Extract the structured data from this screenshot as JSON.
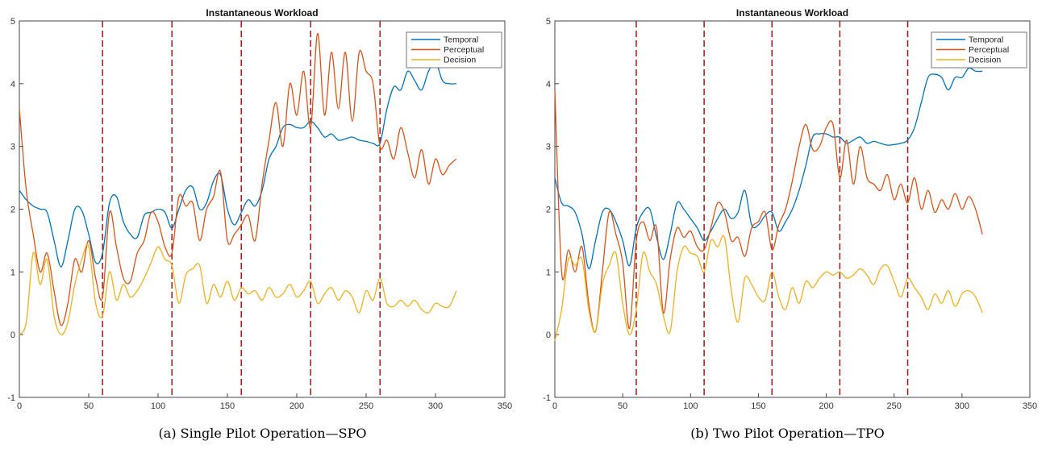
{
  "chart_data": [
    {
      "type": "line",
      "title": "Instantaneous Workload",
      "caption": "(a) Single Pilot Operation—SPO",
      "xlim": [
        0,
        350
      ],
      "ylim": [
        -1,
        5
      ],
      "x_ticks": [
        0,
        50,
        100,
        150,
        200,
        250,
        300,
        350
      ],
      "y_ticks": [
        -1,
        0,
        1,
        2,
        3,
        4,
        5
      ],
      "grid": false,
      "legend_position": "top-right",
      "vlines": [
        60,
        110,
        160,
        210,
        260
      ],
      "vline_color": "#a01818",
      "series": [
        {
          "name": "Temporal",
          "color": "#0072BD",
          "x": [
            0,
            5,
            10,
            15,
            20,
            25,
            30,
            35,
            40,
            45,
            50,
            55,
            60,
            65,
            70,
            75,
            80,
            85,
            90,
            95,
            100,
            105,
            110,
            115,
            120,
            125,
            130,
            135,
            140,
            145,
            150,
            155,
            160,
            165,
            170,
            175,
            180,
            185,
            190,
            195,
            200,
            205,
            210,
            215,
            220,
            225,
            230,
            235,
            240,
            245,
            250,
            255,
            260,
            265,
            270,
            275,
            280,
            285,
            290,
            295,
            300,
            305,
            310,
            315
          ],
          "y": [
            2.3,
            2.15,
            2.05,
            2.0,
            1.95,
            1.5,
            1.08,
            1.5,
            2.0,
            1.98,
            1.6,
            1.15,
            1.3,
            2.1,
            2.2,
            1.8,
            1.6,
            1.55,
            1.9,
            1.95,
            2.0,
            1.95,
            1.7,
            2.0,
            2.3,
            2.35,
            2.0,
            2.1,
            2.45,
            2.55,
            2.0,
            1.75,
            1.95,
            2.15,
            2.05,
            2.3,
            2.8,
            3.0,
            3.3,
            3.35,
            3.3,
            3.3,
            3.4,
            3.3,
            3.15,
            3.2,
            3.1,
            3.12,
            3.15,
            3.1,
            3.08,
            3.05,
            3.05,
            3.6,
            3.95,
            3.9,
            4.2,
            4.05,
            3.9,
            4.2,
            4.35,
            4.05,
            4.0,
            4.0
          ]
        },
        {
          "name": "Perceptual",
          "color": "#D95319",
          "x": [
            0,
            5,
            10,
            15,
            20,
            25,
            30,
            35,
            40,
            45,
            50,
            55,
            60,
            65,
            70,
            75,
            80,
            85,
            90,
            95,
            100,
            105,
            110,
            115,
            120,
            125,
            130,
            135,
            140,
            145,
            150,
            155,
            160,
            165,
            170,
            175,
            180,
            185,
            190,
            195,
            200,
            205,
            210,
            215,
            220,
            225,
            230,
            235,
            240,
            245,
            250,
            255,
            260,
            265,
            270,
            275,
            280,
            285,
            290,
            295,
            300,
            305,
            310,
            315
          ],
          "y": [
            3.6,
            2.3,
            1.6,
            1.0,
            1.3,
            0.7,
            0.15,
            0.5,
            1.2,
            1.0,
            1.5,
            0.9,
            0.6,
            1.95,
            1.4,
            0.9,
            0.85,
            1.3,
            1.5,
            1.95,
            1.8,
            1.4,
            1.3,
            2.2,
            2.05,
            2.1,
            1.5,
            2.0,
            2.2,
            2.6,
            1.5,
            1.6,
            1.75,
            1.9,
            1.5,
            2.4,
            3.1,
            3.7,
            3.0,
            4.0,
            3.5,
            4.2,
            3.3,
            4.8,
            3.5,
            4.5,
            3.6,
            4.5,
            3.4,
            4.5,
            4.2,
            4.0,
            3.0,
            3.1,
            2.8,
            3.3,
            2.9,
            2.5,
            2.95,
            2.4,
            2.8,
            2.55,
            2.7,
            2.8
          ]
        },
        {
          "name": "Decision",
          "color": "#EDB120",
          "x": [
            0,
            5,
            10,
            15,
            20,
            25,
            30,
            35,
            40,
            45,
            50,
            55,
            60,
            65,
            70,
            75,
            80,
            85,
            90,
            95,
            100,
            105,
            110,
            115,
            120,
            125,
            130,
            135,
            140,
            145,
            150,
            155,
            160,
            165,
            170,
            175,
            180,
            185,
            190,
            195,
            200,
            205,
            210,
            215,
            220,
            225,
            230,
            235,
            240,
            245,
            250,
            255,
            260,
            265,
            270,
            275,
            280,
            285,
            290,
            295,
            300,
            305,
            310,
            315
          ],
          "y": [
            0.0,
            0.2,
            1.3,
            0.8,
            1.2,
            0.3,
            0.0,
            0.2,
            0.8,
            1.2,
            1.4,
            0.5,
            0.3,
            1.0,
            0.55,
            0.8,
            0.6,
            0.7,
            0.9,
            1.15,
            1.4,
            1.2,
            1.1,
            0.5,
            0.95,
            1.05,
            1.1,
            0.5,
            0.8,
            0.6,
            0.85,
            0.55,
            0.75,
            0.65,
            0.7,
            0.55,
            0.75,
            0.6,
            0.65,
            0.8,
            0.6,
            0.7,
            0.85,
            0.5,
            0.65,
            0.75,
            0.55,
            0.7,
            0.6,
            0.35,
            0.7,
            0.55,
            0.9,
            0.5,
            0.45,
            0.55,
            0.45,
            0.55,
            0.4,
            0.35,
            0.5,
            0.45,
            0.45,
            0.7
          ]
        }
      ]
    },
    {
      "type": "line",
      "title": "Instantaneous Workload",
      "caption": "(b) Two Pilot Operation—TPO",
      "xlim": [
        0,
        350
      ],
      "ylim": [
        -1,
        5
      ],
      "x_ticks": [
        0,
        50,
        100,
        150,
        200,
        250,
        300,
        350
      ],
      "y_ticks": [
        -1,
        0,
        1,
        2,
        3,
        4,
        5
      ],
      "grid": false,
      "legend_position": "top-right",
      "vlines": [
        60,
        110,
        160,
        210,
        260
      ],
      "vline_color": "#a01818",
      "series": [
        {
          "name": "Temporal",
          "color": "#0072BD",
          "x": [
            0,
            5,
            10,
            15,
            20,
            25,
            30,
            35,
            40,
            45,
            50,
            55,
            60,
            65,
            70,
            75,
            80,
            85,
            90,
            95,
            100,
            105,
            110,
            115,
            120,
            125,
            130,
            135,
            140,
            145,
            150,
            155,
            160,
            165,
            170,
            175,
            180,
            185,
            190,
            195,
            200,
            205,
            210,
            215,
            220,
            225,
            230,
            235,
            240,
            245,
            250,
            255,
            260,
            265,
            270,
            275,
            280,
            285,
            290,
            295,
            300,
            305,
            310,
            315
          ],
          "y": [
            2.5,
            2.1,
            2.05,
            1.95,
            1.6,
            1.05,
            1.5,
            1.95,
            2.0,
            1.8,
            1.5,
            1.1,
            1.7,
            1.95,
            2.0,
            1.55,
            1.2,
            1.6,
            2.1,
            2.0,
            1.85,
            1.7,
            1.5,
            1.65,
            1.85,
            2.0,
            1.85,
            1.95,
            2.3,
            1.75,
            1.75,
            1.9,
            1.95,
            1.65,
            1.8,
            2.0,
            2.3,
            2.7,
            3.15,
            3.2,
            3.2,
            3.15,
            3.15,
            3.05,
            3.1,
            3.15,
            3.05,
            3.08,
            3.05,
            3.02,
            3.03,
            3.05,
            3.1,
            3.3,
            3.7,
            4.1,
            4.15,
            4.1,
            3.9,
            4.1,
            4.1,
            4.25,
            4.2,
            4.2
          ]
        },
        {
          "name": "Perceptual",
          "color": "#D95319",
          "x": [
            0,
            5,
            10,
            15,
            20,
            25,
            30,
            35,
            40,
            45,
            50,
            55,
            60,
            65,
            70,
            75,
            80,
            85,
            90,
            95,
            100,
            105,
            110,
            115,
            120,
            125,
            130,
            135,
            140,
            145,
            150,
            155,
            160,
            165,
            170,
            175,
            180,
            185,
            190,
            195,
            200,
            205,
            210,
            215,
            220,
            225,
            230,
            235,
            240,
            245,
            250,
            255,
            260,
            265,
            270,
            275,
            280,
            285,
            290,
            295,
            300,
            305,
            310,
            315
          ],
          "y": [
            3.9,
            1.0,
            1.35,
            1.0,
            1.4,
            0.5,
            0.05,
            1.0,
            1.95,
            1.6,
            1.15,
            0.1,
            1.5,
            1.8,
            1.5,
            1.7,
            0.35,
            1.2,
            1.7,
            1.55,
            1.65,
            1.4,
            1.35,
            1.7,
            2.1,
            1.95,
            1.5,
            1.55,
            1.25,
            1.7,
            1.8,
            1.95,
            1.35,
            1.75,
            2.0,
            2.45,
            3.0,
            3.35,
            2.95,
            3.0,
            3.3,
            3.35,
            2.5,
            3.1,
            2.4,
            3.0,
            2.5,
            2.4,
            2.3,
            2.55,
            2.15,
            2.4,
            2.1,
            2.5,
            2.0,
            2.3,
            1.95,
            2.15,
            2.0,
            2.25,
            2.0,
            2.2,
            2.0,
            1.6
          ]
        },
        {
          "name": "Decision",
          "color": "#EDB120",
          "x": [
            0,
            5,
            10,
            15,
            20,
            25,
            30,
            35,
            40,
            45,
            50,
            55,
            60,
            65,
            70,
            75,
            80,
            85,
            90,
            95,
            100,
            105,
            110,
            115,
            120,
            125,
            130,
            135,
            140,
            145,
            150,
            155,
            160,
            165,
            170,
            175,
            180,
            185,
            190,
            195,
            200,
            205,
            210,
            215,
            220,
            225,
            230,
            235,
            240,
            245,
            250,
            255,
            260,
            265,
            270,
            275,
            280,
            285,
            290,
            295,
            300,
            305,
            310,
            315
          ],
          "y": [
            -0.1,
            0.4,
            1.2,
            1.1,
            1.2,
            0.4,
            0.05,
            0.8,
            1.1,
            1.3,
            0.5,
            0.0,
            0.4,
            1.3,
            1.0,
            0.8,
            0.3,
            0.05,
            1.0,
            1.4,
            1.3,
            1.25,
            1.0,
            1.5,
            1.4,
            1.55,
            0.7,
            0.2,
            0.9,
            0.8,
            0.6,
            0.55,
            1.0,
            0.6,
            0.4,
            0.75,
            0.5,
            0.85,
            0.75,
            0.9,
            1.0,
            0.95,
            1.0,
            0.9,
            0.95,
            1.05,
            0.95,
            0.8,
            1.05,
            1.1,
            0.85,
            0.6,
            0.9,
            0.75,
            0.6,
            0.4,
            0.65,
            0.5,
            0.7,
            0.45,
            0.65,
            0.7,
            0.6,
            0.35
          ]
        }
      ]
    }
  ]
}
